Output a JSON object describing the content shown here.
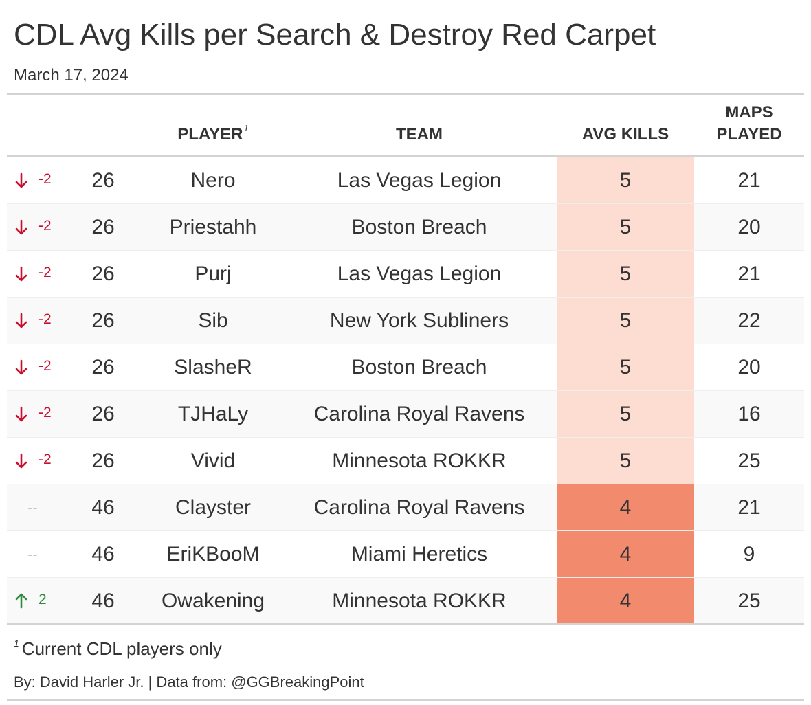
{
  "title": "CDL Avg Kills per Search & Destroy Red Carpet",
  "subtitle": "March 17, 2024",
  "columns": {
    "player": "PLAYER",
    "player_footnote_mark": "1",
    "team": "TEAM",
    "avg_kills": "AVG KILLS",
    "maps_played_line1": "MAPS",
    "maps_played_line2": "PLAYED"
  },
  "colors": {
    "down": "#c8102e",
    "up": "#2e8b3e",
    "neutral": "#c8c8c8",
    "kills_high": "#fddcd2",
    "kills_low": "#f28a6e"
  },
  "chart_data": {
    "type": "table",
    "title": "CDL Avg Kills per Search & Destroy Red Carpet",
    "subtitle": "March 17, 2024",
    "rows": [
      {
        "direction": "down",
        "change": "-2",
        "rank": "26",
        "player": "Nero",
        "team": "Las Vegas Legion",
        "avg_kills": 5,
        "maps_played": 21
      },
      {
        "direction": "down",
        "change": "-2",
        "rank": "26",
        "player": "Priestahh",
        "team": "Boston Breach",
        "avg_kills": 5,
        "maps_played": 20
      },
      {
        "direction": "down",
        "change": "-2",
        "rank": "26",
        "player": "Purj",
        "team": "Las Vegas Legion",
        "avg_kills": 5,
        "maps_played": 21
      },
      {
        "direction": "down",
        "change": "-2",
        "rank": "26",
        "player": "Sib",
        "team": "New York Subliners",
        "avg_kills": 5,
        "maps_played": 22
      },
      {
        "direction": "down",
        "change": "-2",
        "rank": "26",
        "player": "SlasheR",
        "team": "Boston Breach",
        "avg_kills": 5,
        "maps_played": 20
      },
      {
        "direction": "down",
        "change": "-2",
        "rank": "26",
        "player": "TJHaLy",
        "team": "Carolina Royal Ravens",
        "avg_kills": 5,
        "maps_played": 16
      },
      {
        "direction": "down",
        "change": "-2",
        "rank": "26",
        "player": "Vivid",
        "team": "Minnesota ROKKR",
        "avg_kills": 5,
        "maps_played": 25
      },
      {
        "direction": "none",
        "change": "--",
        "rank": "46",
        "player": "Clayster",
        "team": "Carolina Royal Ravens",
        "avg_kills": 4,
        "maps_played": 21
      },
      {
        "direction": "none",
        "change": "--",
        "rank": "46",
        "player": "EriKBooM",
        "team": "Miami Heretics",
        "avg_kills": 4,
        "maps_played": 9
      },
      {
        "direction": "up",
        "change": "2",
        "rank": "46",
        "player": "Owakening",
        "team": "Minnesota ROKKR",
        "avg_kills": 4,
        "maps_played": 25
      }
    ]
  },
  "footnote": {
    "mark": "1",
    "text": "Current CDL players only"
  },
  "source": "By: David Harler Jr. | Data from: @GGBreakingPoint"
}
